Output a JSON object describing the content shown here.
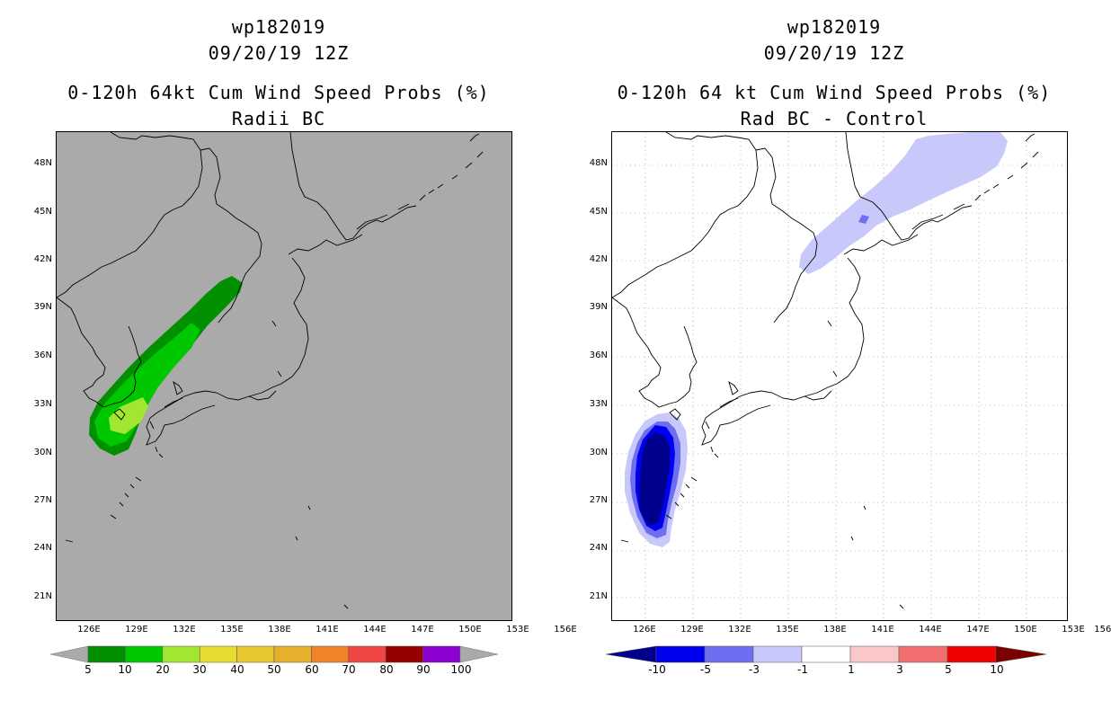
{
  "left": {
    "title_line1": "wp182019",
    "title_line2": "09/20/19 12Z",
    "title_line3": "0-120h 64kt Cum Wind Speed Probs (%)",
    "title_line4": "Radii BC",
    "legend_labels": [
      "5",
      "10",
      "20",
      "30",
      "40",
      "50",
      "60",
      "70",
      "80",
      "90",
      "100"
    ],
    "legend_colors": [
      "#009000",
      "#00c800",
      "#a0e632",
      "#e6dc32",
      "#e6c832",
      "#e6af2d",
      "#f08228",
      "#f04646",
      "#960000",
      "#8c00d2"
    ],
    "background_color": "#aaaaaa"
  },
  "right": {
    "title_line1": "wp182019",
    "title_line2": "09/20/19 12Z",
    "title_line3": "0-120h 64 kt Cum Wind Speed Probs (%)",
    "title_line4": "Rad BC - Control",
    "legend_labels": [
      "-10",
      "-5",
      "-3",
      "-1",
      "1",
      "3",
      "5",
      "10"
    ],
    "legend_colors": [
      "#00008c",
      "#0000f0",
      "#6e6ef0",
      "#c8c8fa",
      "#ffffff",
      "#fac8c8",
      "#f06e6e",
      "#f00000",
      "#780000"
    ]
  },
  "axes": {
    "lat_labels": [
      "48N",
      "45N",
      "42N",
      "39N",
      "36N",
      "33N",
      "30N",
      "27N",
      "24N",
      "21N"
    ],
    "lon_labels": [
      "126E",
      "129E",
      "132E",
      "135E",
      "138E",
      "141E",
      "144E",
      "147E",
      "150E",
      "153E",
      "156E"
    ]
  }
}
